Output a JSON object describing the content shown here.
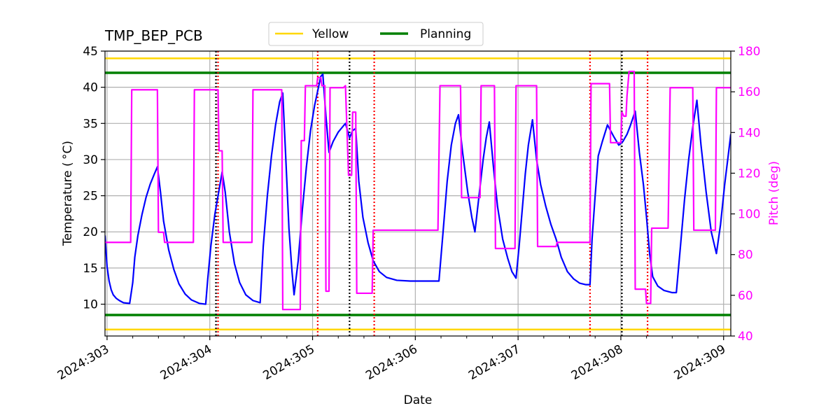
{
  "chart_data": {
    "type": "line",
    "title": "TMP_BEP_PCB",
    "xlabel": "Date",
    "ylabel": "Temperature ($^\\circ$C)",
    "ylabel_display": "Temperature ( °C)",
    "y2label": "Pitch (deg)",
    "xlim": [
      302.98,
      309.07
    ],
    "ylim": [
      5.6,
      45
    ],
    "y2lim": [
      40,
      180
    ],
    "x_ticks": [
      {
        "value": 303,
        "label": "2024:303"
      },
      {
        "value": 304,
        "label": "2024:304"
      },
      {
        "value": 305,
        "label": "2024:305"
      },
      {
        "value": 306,
        "label": "2024:306"
      },
      {
        "value": 307,
        "label": "2024:307"
      },
      {
        "value": 308,
        "label": "2024:308"
      },
      {
        "value": 309,
        "label": "2024:309"
      }
    ],
    "y_ticks": [
      10,
      15,
      20,
      25,
      30,
      35,
      40,
      45
    ],
    "y2_ticks": [
      40,
      60,
      80,
      100,
      120,
      140,
      160,
      180
    ],
    "grid": true,
    "legend_position": "top-center",
    "legend": [
      {
        "label": "Yellow",
        "color": "#ffd700"
      },
      {
        "label": "Planning",
        "color": "#008000"
      }
    ],
    "limit_lines": [
      {
        "name": "Yellow",
        "color": "#ffd700",
        "values": [
          44.0,
          6.5
        ]
      },
      {
        "name": "Planning",
        "color": "#008000",
        "values": [
          42.0,
          8.5
        ]
      }
    ],
    "vlines_black": [
      304.06,
      305.36,
      308.01
    ],
    "vlines_red": [
      304.08,
      305.05,
      305.6,
      307.7,
      308.26
    ],
    "series": [
      {
        "name": "",
        "axis": "left",
        "color": "#0000ff",
        "points": [
          [
            302.98,
            19.5
          ],
          [
            303.0,
            15.2
          ],
          [
            303.02,
            13.2
          ],
          [
            303.04,
            12.0
          ],
          [
            303.06,
            11.3
          ],
          [
            303.09,
            10.8
          ],
          [
            303.12,
            10.5
          ],
          [
            303.16,
            10.2
          ],
          [
            303.22,
            10.1
          ],
          [
            303.25,
            13.0
          ],
          [
            303.27,
            16.5
          ],
          [
            303.3,
            19.5
          ],
          [
            303.34,
            22.4
          ],
          [
            303.38,
            24.8
          ],
          [
            303.42,
            26.6
          ],
          [
            303.46,
            28.0
          ],
          [
            303.49,
            29.0
          ],
          [
            303.52,
            25.5
          ],
          [
            303.55,
            21.5
          ],
          [
            303.6,
            17.5
          ],
          [
            303.65,
            14.8
          ],
          [
            303.7,
            12.8
          ],
          [
            303.76,
            11.4
          ],
          [
            303.82,
            10.6
          ],
          [
            303.9,
            10.1
          ],
          [
            303.96,
            10.0
          ],
          [
            303.98,
            13.5
          ],
          [
            304.01,
            18.0
          ],
          [
            304.05,
            22.5
          ],
          [
            304.09,
            25.8
          ],
          [
            304.12,
            28.3
          ],
          [
            304.15,
            25.5
          ],
          [
            304.19,
            20.0
          ],
          [
            304.24,
            15.6
          ],
          [
            304.29,
            13.0
          ],
          [
            304.35,
            11.3
          ],
          [
            304.42,
            10.5
          ],
          [
            304.49,
            10.2
          ],
          [
            304.52,
            18.0
          ],
          [
            304.56,
            25.0
          ],
          [
            304.6,
            30.5
          ],
          [
            304.64,
            34.8
          ],
          [
            304.68,
            38.0
          ],
          [
            304.71,
            39.2
          ],
          [
            304.74,
            30.0
          ],
          [
            304.77,
            20.5
          ],
          [
            304.8,
            14.5
          ],
          [
            304.82,
            11.3
          ],
          [
            304.86,
            16.0
          ],
          [
            304.9,
            23.0
          ],
          [
            304.94,
            29.0
          ],
          [
            304.98,
            34.0
          ],
          [
            305.02,
            37.5
          ],
          [
            305.05,
            39.5
          ],
          [
            305.08,
            41.5
          ],
          [
            305.1,
            41.8
          ],
          [
            305.13,
            36.0
          ],
          [
            305.16,
            31.0
          ],
          [
            305.2,
            32.5
          ],
          [
            305.25,
            33.8
          ],
          [
            305.32,
            35.0
          ],
          [
            305.36,
            33.0
          ],
          [
            305.39,
            34.0
          ],
          [
            305.42,
            34.3
          ],
          [
            305.45,
            27.0
          ],
          [
            305.49,
            22.0
          ],
          [
            305.54,
            18.5
          ],
          [
            305.59,
            16.0
          ],
          [
            305.65,
            14.5
          ],
          [
            305.72,
            13.7
          ],
          [
            305.82,
            13.3
          ],
          [
            305.95,
            13.2
          ],
          [
            306.1,
            13.2
          ],
          [
            306.23,
            13.2
          ],
          [
            306.27,
            20.0
          ],
          [
            306.31,
            27.0
          ],
          [
            306.35,
            32.0
          ],
          [
            306.39,
            35.0
          ],
          [
            306.42,
            36.2
          ],
          [
            306.46,
            31.0
          ],
          [
            306.51,
            25.5
          ],
          [
            306.55,
            22.0
          ],
          [
            306.58,
            20.0
          ],
          [
            306.62,
            25.0
          ],
          [
            306.66,
            30.0
          ],
          [
            306.69,
            33.0
          ],
          [
            306.72,
            35.2
          ],
          [
            306.76,
            29.0
          ],
          [
            306.8,
            23.5
          ],
          [
            306.85,
            19.0
          ],
          [
            306.9,
            16.3
          ],
          [
            306.94,
            14.5
          ],
          [
            306.98,
            13.6
          ],
          [
            307.01,
            18.0
          ],
          [
            307.04,
            23.0
          ],
          [
            307.07,
            28.0
          ],
          [
            307.1,
            32.0
          ],
          [
            307.14,
            35.5
          ],
          [
            307.18,
            30.0
          ],
          [
            307.22,
            26.5
          ],
          [
            307.27,
            23.5
          ],
          [
            307.32,
            21.0
          ],
          [
            307.37,
            19.0
          ],
          [
            307.42,
            16.5
          ],
          [
            307.48,
            14.5
          ],
          [
            307.54,
            13.5
          ],
          [
            307.6,
            12.9
          ],
          [
            307.66,
            12.7
          ],
          [
            307.7,
            12.7
          ],
          [
            307.72,
            19.0
          ],
          [
            307.75,
            25.0
          ],
          [
            307.78,
            30.5
          ],
          [
            307.82,
            32.5
          ],
          [
            307.87,
            34.8
          ],
          [
            307.93,
            33.2
          ],
          [
            307.98,
            32.0
          ],
          [
            308.02,
            32.5
          ],
          [
            308.06,
            33.5
          ],
          [
            308.09,
            34.6
          ],
          [
            308.14,
            36.7
          ],
          [
            308.18,
            31.0
          ],
          [
            308.22,
            26.5
          ],
          [
            308.25,
            22.0
          ],
          [
            308.28,
            17.0
          ],
          [
            308.31,
            13.8
          ],
          [
            308.36,
            12.5
          ],
          [
            308.42,
            11.9
          ],
          [
            308.5,
            11.6
          ],
          [
            308.54,
            11.6
          ],
          [
            308.58,
            18.0
          ],
          [
            308.62,
            24.5
          ],
          [
            308.66,
            30.0
          ],
          [
            308.7,
            34.5
          ],
          [
            308.74,
            38.2
          ],
          [
            308.78,
            32.0
          ],
          [
            308.83,
            25.5
          ],
          [
            308.88,
            20.0
          ],
          [
            308.93,
            17.0
          ],
          [
            308.97,
            21.0
          ],
          [
            309.01,
            26.5
          ],
          [
            309.04,
            30.0
          ],
          [
            309.07,
            33.5
          ]
        ]
      },
      {
        "name": "",
        "axis": "right",
        "color": "#ff00ff",
        "points": [
          [
            302.98,
            86
          ],
          [
            303.23,
            86
          ],
          [
            303.24,
            161
          ],
          [
            303.49,
            161
          ],
          [
            303.5,
            91
          ],
          [
            303.55,
            91
          ],
          [
            303.56,
            86
          ],
          [
            303.84,
            86
          ],
          [
            303.85,
            161
          ],
          [
            304.08,
            161
          ],
          [
            304.09,
            131
          ],
          [
            304.12,
            131
          ],
          [
            304.13,
            86
          ],
          [
            304.41,
            86
          ],
          [
            304.42,
            161
          ],
          [
            304.7,
            161
          ],
          [
            304.71,
            53
          ],
          [
            304.88,
            53
          ],
          [
            304.89,
            136
          ],
          [
            304.92,
            136
          ],
          [
            304.93,
            163
          ],
          [
            305.04,
            163
          ],
          [
            305.05,
            167
          ],
          [
            305.08,
            167
          ],
          [
            305.09,
            163
          ],
          [
            305.12,
            163
          ],
          [
            305.13,
            62
          ],
          [
            305.16,
            62
          ],
          [
            305.17,
            162
          ],
          [
            305.3,
            162
          ],
          [
            305.32,
            163
          ],
          [
            305.35,
            119
          ],
          [
            305.38,
            119
          ],
          [
            305.39,
            150
          ],
          [
            305.42,
            150
          ],
          [
            305.43,
            61
          ],
          [
            305.55,
            61
          ],
          [
            305.58,
            61
          ],
          [
            305.59,
            92
          ],
          [
            306.22,
            92
          ],
          [
            306.24,
            163
          ],
          [
            306.44,
            163
          ],
          [
            306.45,
            108
          ],
          [
            306.63,
            108
          ],
          [
            306.64,
            163
          ],
          [
            306.77,
            163
          ],
          [
            306.78,
            83
          ],
          [
            306.97,
            83
          ],
          [
            306.98,
            163
          ],
          [
            307.18,
            163
          ],
          [
            307.19,
            84
          ],
          [
            307.37,
            84
          ],
          [
            307.38,
            86
          ],
          [
            307.7,
            86
          ],
          [
            307.71,
            164
          ],
          [
            307.89,
            164
          ],
          [
            307.9,
            135
          ],
          [
            308.0,
            135
          ],
          [
            308.01,
            150
          ],
          [
            308.03,
            148
          ],
          [
            308.05,
            148
          ],
          [
            308.06,
            158
          ],
          [
            308.08,
            170
          ],
          [
            308.13,
            170
          ],
          [
            308.14,
            63
          ],
          [
            308.24,
            63
          ],
          [
            308.25,
            56
          ],
          [
            308.29,
            56
          ],
          [
            308.3,
            93
          ],
          [
            308.46,
            93
          ],
          [
            308.48,
            162
          ],
          [
            308.7,
            162
          ],
          [
            308.71,
            92
          ],
          [
            308.92,
            92
          ],
          [
            308.93,
            162
          ],
          [
            309.07,
            162
          ]
        ]
      }
    ]
  }
}
